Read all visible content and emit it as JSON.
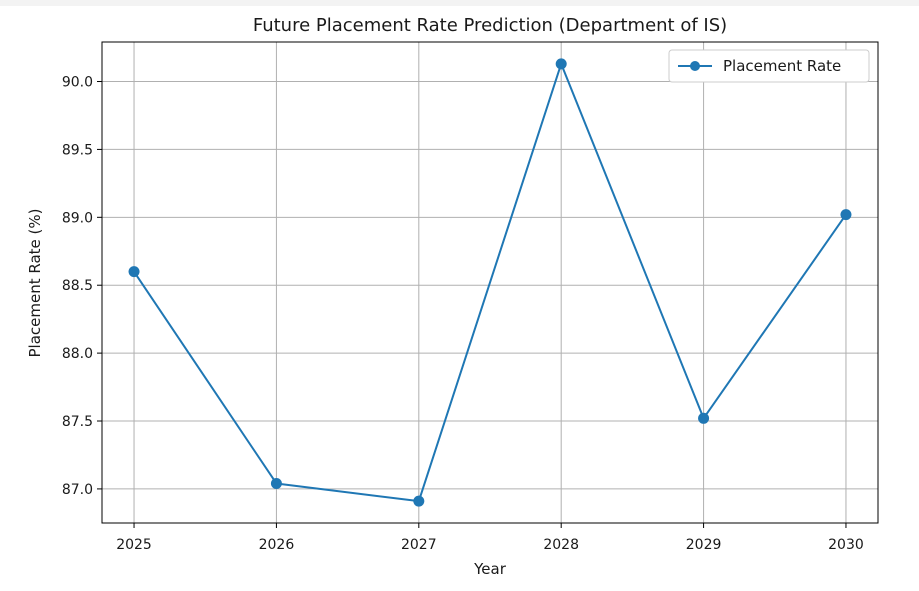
{
  "chart_data": {
    "type": "line",
    "title": "Future Placement Rate Prediction (Department of IS)",
    "xlabel": "Year",
    "ylabel": "Placement Rate (%)",
    "x": [
      2025,
      2026,
      2027,
      2028,
      2029,
      2030
    ],
    "series": [
      {
        "name": "Placement Rate",
        "values": [
          88.6,
          87.04,
          86.91,
          90.13,
          87.52,
          89.02
        ],
        "color": "#1f77b4",
        "marker": "circle"
      }
    ],
    "x_ticks": [
      "2025",
      "2026",
      "2027",
      "2028",
      "2029",
      "2030"
    ],
    "y_ticks": [
      "87.0",
      "87.5",
      "88.0",
      "88.5",
      "89.0",
      "89.5",
      "90.0"
    ],
    "xlim": [
      2024.775,
      2030.225
    ],
    "ylim": [
      86.749,
      90.291
    ],
    "grid": true,
    "legend_position": "top-right"
  }
}
